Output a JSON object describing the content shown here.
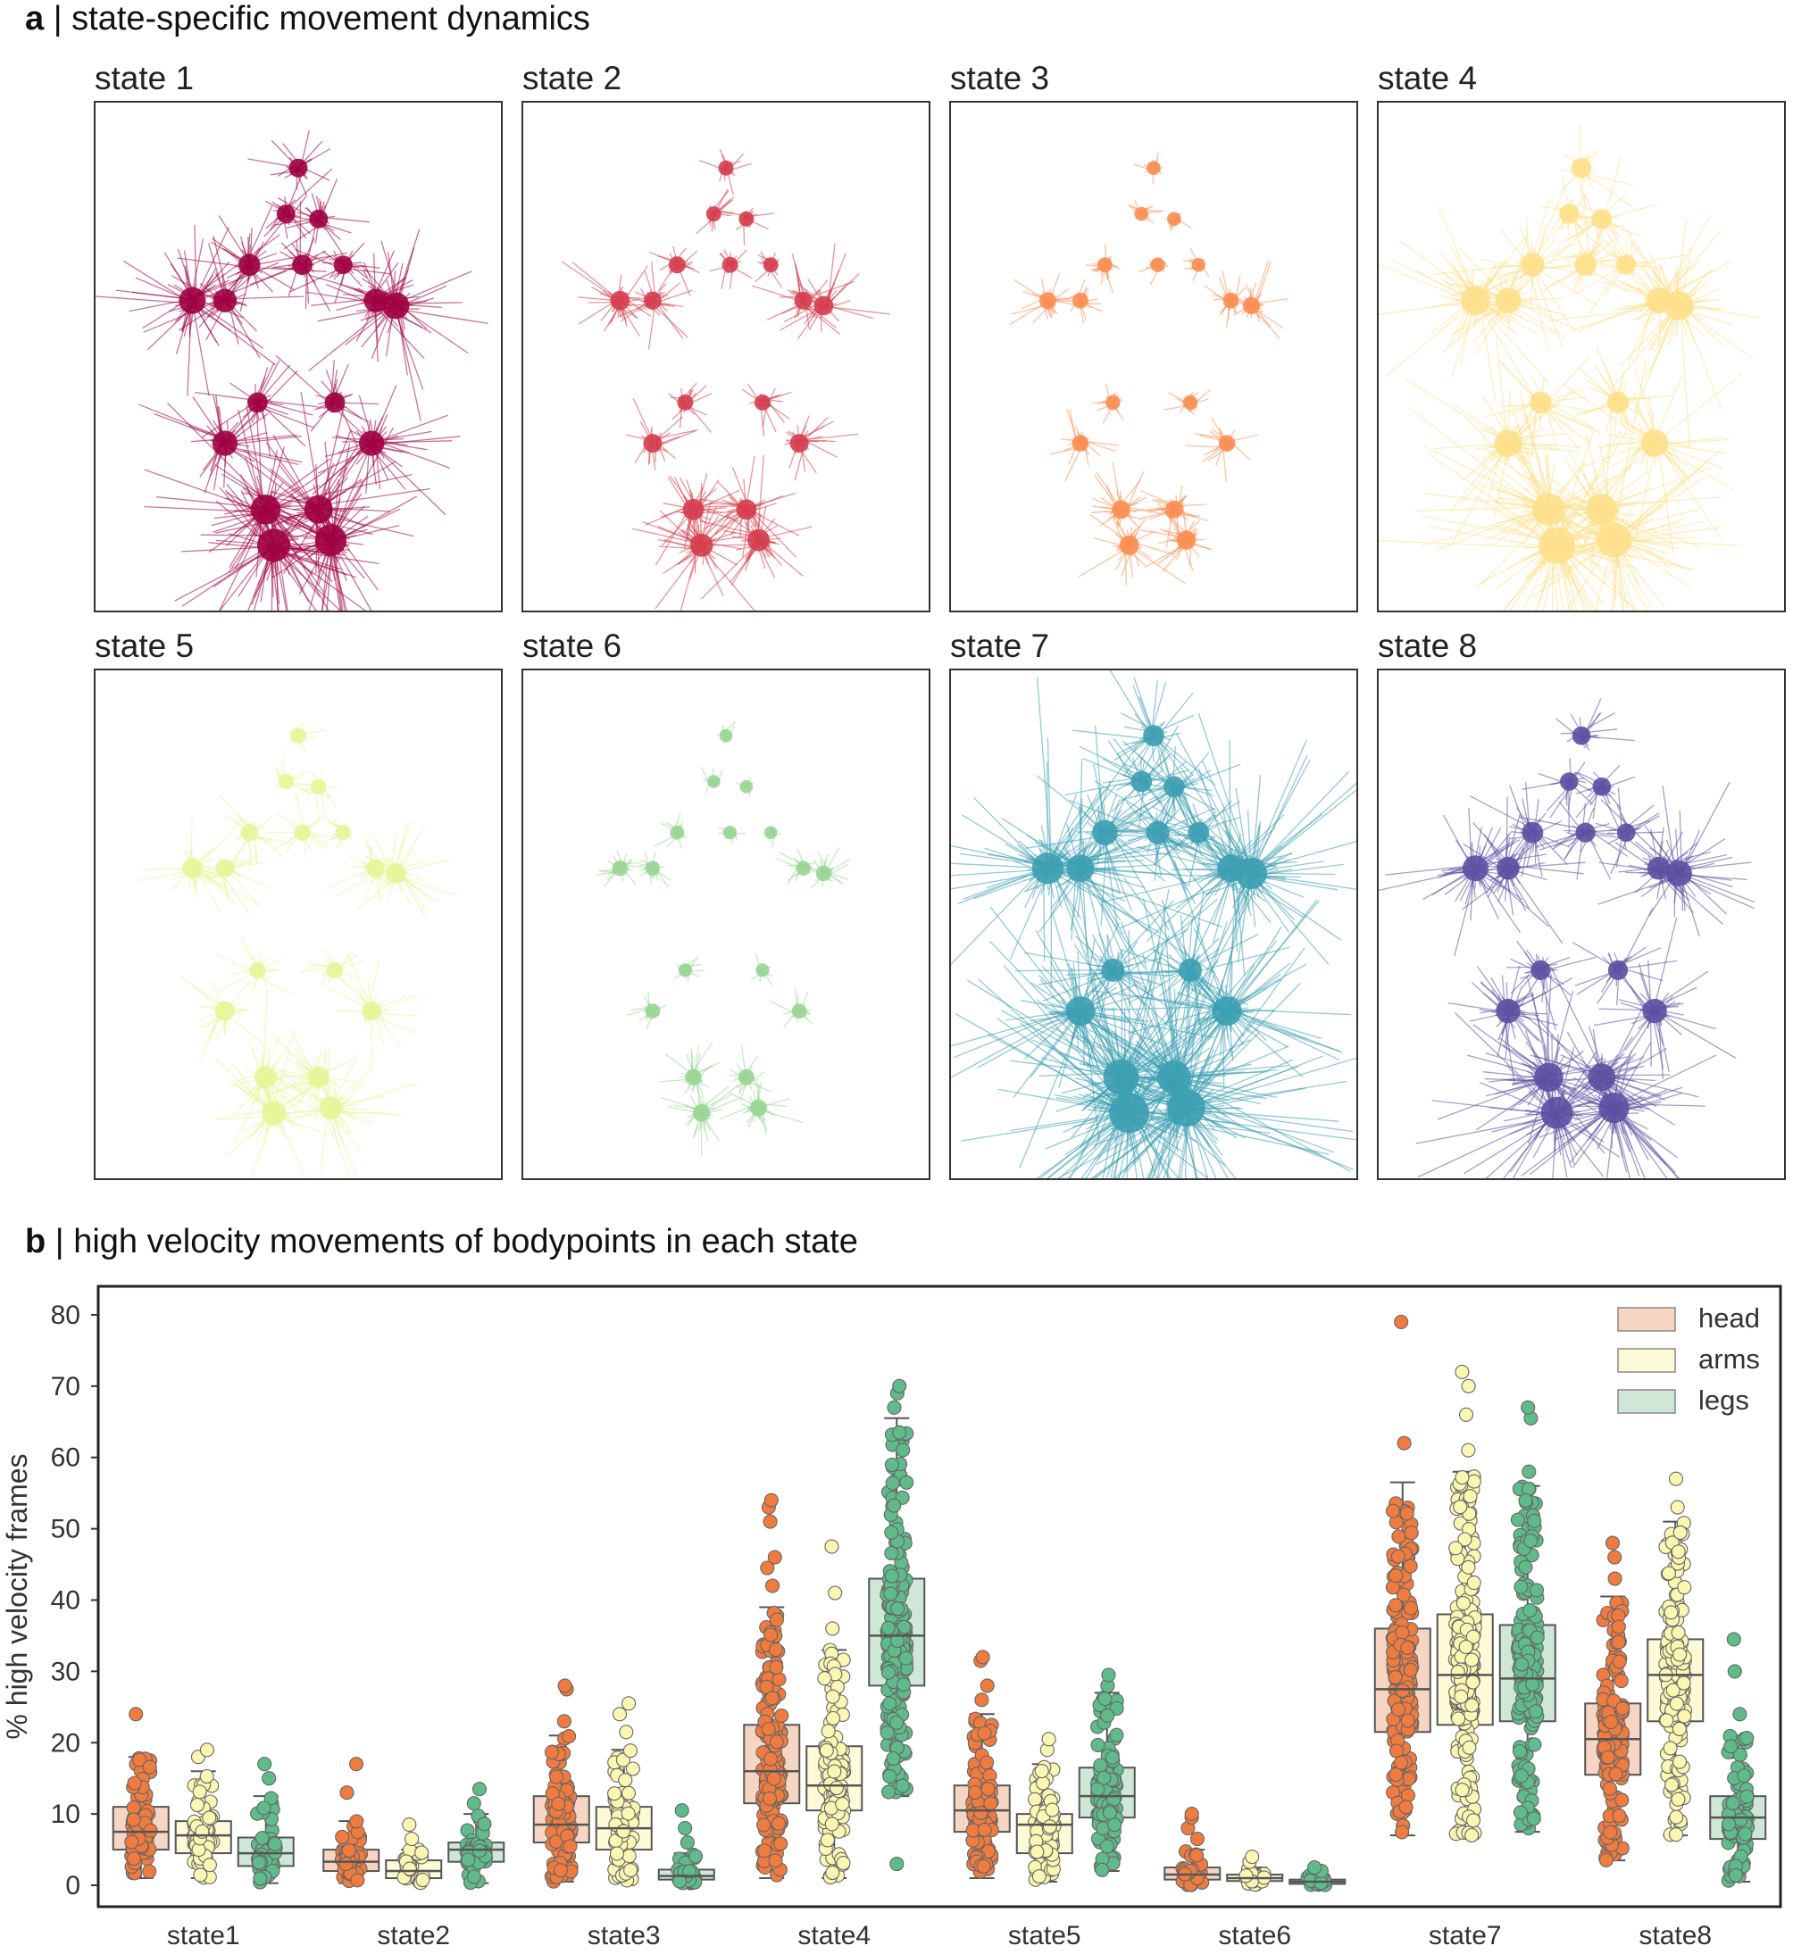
{
  "panel_a": {
    "letter": "a",
    "title": "state-specific movement dynamics",
    "states": [
      {
        "label": "state 1",
        "color": "#9e0142",
        "spread": 1.0
      },
      {
        "label": "state 2",
        "color": "#d53e4f",
        "spread": 0.55
      },
      {
        "label": "state 3",
        "color": "#f98e52",
        "spread": 0.4
      },
      {
        "label": "state 4",
        "color": "#fee08b",
        "spread": 1.15
      },
      {
        "label": "state 5",
        "color": "#e6f598",
        "spread": 0.6
      },
      {
        "label": "state 6",
        "color": "#99d594",
        "spread": 0.3
      },
      {
        "label": "state 7",
        "color": "#3d9fb3",
        "spread": 1.6
      },
      {
        "label": "state 8",
        "color": "#5e4fa2",
        "spread": 0.95
      }
    ]
  },
  "panel_b": {
    "letter": "b",
    "title": "high velocity movements of bodypoints in each state"
  },
  "chart_data": {
    "type": "box",
    "title": "high velocity movements of bodypoints in each state",
    "xlabel": "",
    "ylabel": "% high velocity frames",
    "ylim": [
      -3,
      84
    ],
    "yticks": [
      0,
      10,
      20,
      30,
      40,
      50,
      60,
      70,
      80
    ],
    "grid": false,
    "legend_position": "top-right",
    "categories": [
      "state1",
      "state2",
      "state3",
      "state4",
      "state5",
      "state6",
      "state7",
      "state8"
    ],
    "series": [
      {
        "name": "head",
        "box_color": "#f7d5c3",
        "point_color": "#f07b3f",
        "stats": [
          {
            "whislo": 1,
            "q1": 5,
            "med": 7.5,
            "q3": 11,
            "whishi": 18,
            "outliers": [
              24
            ]
          },
          {
            "whislo": 0.3,
            "q1": 2,
            "med": 3.3,
            "q3": 5,
            "whishi": 9,
            "outliers": [
              13,
              17
            ]
          },
          {
            "whislo": 0.5,
            "q1": 6,
            "med": 8.5,
            "q3": 12.5,
            "whishi": 21,
            "outliers": [
              23,
              27.5,
              28
            ]
          },
          {
            "whislo": 1,
            "q1": 11.5,
            "med": 16,
            "q3": 22.5,
            "whishi": 39,
            "outliers": [
              42,
              44.5,
              46,
              51,
              53,
              54
            ]
          },
          {
            "whislo": 1,
            "q1": 7.5,
            "med": 10.5,
            "q3": 14,
            "whishi": 24,
            "outliers": [
              26,
              28,
              31.5,
              32
            ]
          },
          {
            "whislo": 0,
            "q1": 0.8,
            "med": 1.5,
            "q3": 2.5,
            "whishi": 5,
            "outliers": [
              6.5,
              8,
              9.5,
              10
            ]
          },
          {
            "whislo": 7,
            "q1": 21.5,
            "med": 27.5,
            "q3": 36,
            "whishi": 56.5,
            "outliers": [
              62,
              79
            ]
          },
          {
            "whislo": 3.5,
            "q1": 15.5,
            "med": 20.5,
            "q3": 25.5,
            "whishi": 40.5,
            "outliers": [
              43,
              46,
              48
            ]
          }
        ]
      },
      {
        "name": "arms",
        "box_color": "#fdfbd7",
        "point_color": "#fbf6b2",
        "stats": [
          {
            "whislo": 1,
            "q1": 4.5,
            "med": 7,
            "q3": 9,
            "whishi": 16,
            "outliers": [
              18,
              19
            ]
          },
          {
            "whislo": 0.3,
            "q1": 1,
            "med": 2,
            "q3": 3.5,
            "whishi": 5,
            "outliers": [
              6.5,
              8.5
            ]
          },
          {
            "whislo": 0.5,
            "q1": 5,
            "med": 8,
            "q3": 11,
            "whishi": 19,
            "outliers": [
              21.5,
              24,
              25.5
            ]
          },
          {
            "whislo": 1,
            "q1": 10.5,
            "med": 14,
            "q3": 19.5,
            "whishi": 33,
            "outliers": [
              36,
              41,
              47.5
            ]
          },
          {
            "whislo": 0.5,
            "q1": 4.5,
            "med": 8.5,
            "q3": 10,
            "whishi": 17,
            "outliers": [
              19,
              20.5
            ]
          },
          {
            "whislo": 0,
            "q1": 0.6,
            "med": 1,
            "q3": 1.5,
            "whishi": 2.5,
            "outliers": [
              3.3,
              4
            ]
          },
          {
            "whislo": 7,
            "q1": 22.5,
            "med": 29.5,
            "q3": 38,
            "whishi": 58,
            "outliers": [
              61,
              66,
              70,
              72
            ]
          },
          {
            "whislo": 7,
            "q1": 23,
            "med": 29.5,
            "q3": 34.5,
            "whishi": 51,
            "outliers": [
              53,
              57
            ]
          }
        ]
      },
      {
        "name": "legs",
        "box_color": "#cfe7d6",
        "point_color": "#5fbb8a",
        "stats": [
          {
            "whislo": 0.3,
            "q1": 2.7,
            "med": 4.5,
            "q3": 6.7,
            "whishi": 12.5,
            "outliers": [
              15,
              17
            ]
          },
          {
            "whislo": 0.3,
            "q1": 3.3,
            "med": 5,
            "q3": 6,
            "whishi": 10,
            "outliers": [
              11.5,
              13.5
            ]
          },
          {
            "whislo": 0.3,
            "q1": 0.8,
            "med": 1.3,
            "q3": 2.2,
            "whishi": 4.5,
            "outliers": [
              6,
              8,
              10.5
            ]
          },
          {
            "whislo": 12.5,
            "q1": 28,
            "med": 35,
            "q3": 43,
            "whishi": 65.5,
            "outliers": [
              3,
              67,
              69,
              70
            ]
          },
          {
            "whislo": 2,
            "q1": 9.5,
            "med": 12.5,
            "q3": 16.5,
            "whishi": 27,
            "outliers": [
              28,
              29.5
            ]
          },
          {
            "whislo": 0,
            "q1": 0.2,
            "med": 0.5,
            "q3": 0.8,
            "whishi": 1.5,
            "outliers": [
              2,
              2.5
            ]
          },
          {
            "whislo": 7.5,
            "q1": 23,
            "med": 29,
            "q3": 36.5,
            "whishi": 56,
            "outliers": [
              58,
              65.5,
              67
            ]
          },
          {
            "whislo": 0.5,
            "q1": 6.5,
            "med": 9.5,
            "q3": 12.5,
            "whishi": 21,
            "outliers": [
              24,
              30,
              34.5
            ]
          }
        ]
      }
    ]
  }
}
